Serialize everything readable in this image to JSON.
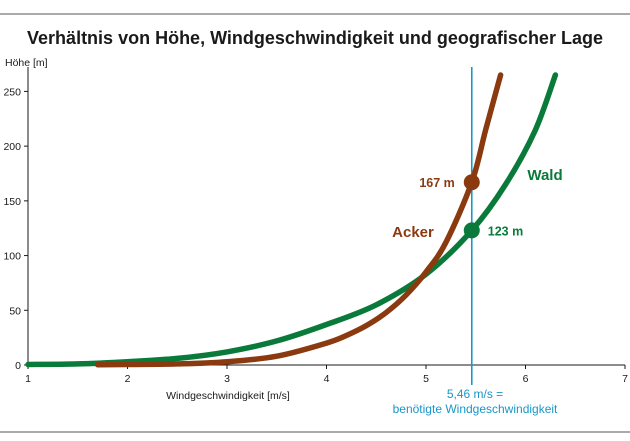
{
  "chart_data": {
    "type": "line",
    "title": "Verhältnis von Höhe, Windgeschwindigkeit und geografischer Lage",
    "xlabel": "Windgeschwindigkeit [m/s]",
    "ylabel": "Höhe [m]",
    "xlim": [
      1,
      7
    ],
    "ylim": [
      0,
      265
    ],
    "xticks": [
      1,
      2,
      3,
      4,
      5,
      6,
      7
    ],
    "yticks": [
      0,
      50,
      100,
      150,
      200,
      250
    ],
    "grid": false,
    "series": [
      {
        "name": "Acker",
        "color": "#8b3a10",
        "x": [
          1.7,
          2.0,
          2.5,
          3.0,
          3.5,
          4.0,
          4.2,
          4.4,
          4.6,
          4.8,
          5.0,
          5.2,
          5.46,
          5.6,
          5.75
        ],
        "y": [
          0.3,
          0.5,
          1,
          3,
          8,
          20,
          27,
          36,
          48,
          64,
          85,
          112,
          167,
          215,
          265
        ]
      },
      {
        "name": "Wald",
        "color": "#0a7a3a",
        "x": [
          1.0,
          1.5,
          2.0,
          2.5,
          3.0,
          3.5,
          4.0,
          4.5,
          5.0,
          5.46,
          5.8,
          6.1,
          6.3
        ],
        "y": [
          0.5,
          1,
          3,
          6,
          12,
          22,
          37,
          55,
          83,
          123,
          165,
          215,
          265
        ]
      }
    ],
    "points": [
      {
        "series": "Acker",
        "x": 5.46,
        "y": 167,
        "label": "167 m"
      },
      {
        "series": "Wald",
        "x": 5.46,
        "y": 123,
        "label": "123 m"
      }
    ],
    "reference_line": {
      "x": 5.46,
      "color": "#1a96c8",
      "label_line1": "5,46 m/s =",
      "label_line2": "benötigte Windgeschwindigkeit"
    }
  }
}
